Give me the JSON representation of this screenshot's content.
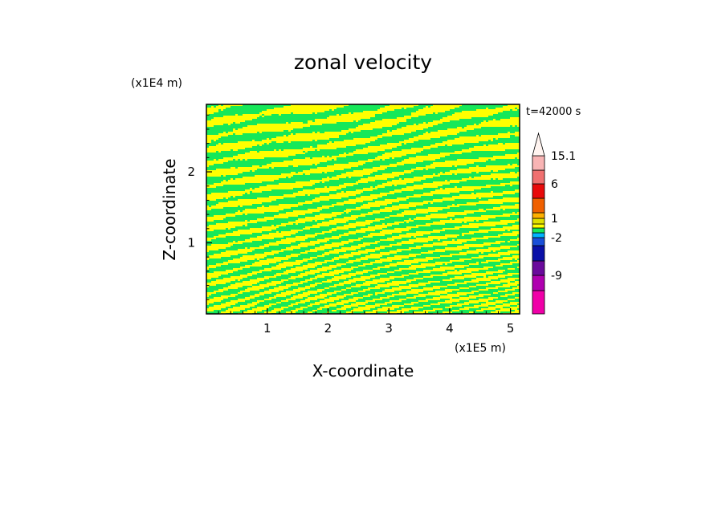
{
  "chart_data": {
    "type": "heatmap",
    "title": "zonal velocity",
    "xlabel": "X-coordinate",
    "ylabel": "Z-coordinate",
    "x_unit": "(x1E5 m)",
    "y_unit": "(x1E4 m)",
    "time_label": "t=42000 s",
    "xlim": [
      0,
      5.15
    ],
    "ylim": [
      0,
      2.95
    ],
    "x_ticks": [
      "1",
      "2",
      "3",
      "4",
      "5"
    ],
    "y_ticks": [
      "1",
      "2"
    ],
    "field_pattern": "alternating bands of values near 0 to 1 (green / yellow) across the whole domain",
    "colorbar": {
      "tick_labels": [
        "15.1",
        "6",
        "1",
        "-2",
        "-9"
      ],
      "levels": [
        {
          "value": "below -9",
          "color": "#f000a8"
        },
        {
          "value": "-9",
          "color": "#b000b0"
        },
        {
          "value": "-6",
          "color": "#6a0a9c"
        },
        {
          "value": "-4",
          "color": "#0a10a8"
        },
        {
          "value": "-2",
          "color": "#1a4fd8"
        },
        {
          "value": "-1",
          "color": "#00b4ff"
        },
        {
          "value": "0",
          "color": "#17e859"
        },
        {
          "value": "0.5",
          "color": "#ffff00"
        },
        {
          "value": "1",
          "color": "#e0e000"
        },
        {
          "value": "2",
          "color": "#ffb000"
        },
        {
          "value": "4",
          "color": "#f06000"
        },
        {
          "value": "6",
          "color": "#e80a0a"
        },
        {
          "value": "10",
          "color": "#f07070"
        },
        {
          "value": "15.1",
          "color": "#f8b4b4"
        },
        {
          "value": "above 15.1",
          "color": "#fff4f0"
        }
      ],
      "field_colors": [
        "#17e859",
        "#ffff00"
      ]
    }
  }
}
